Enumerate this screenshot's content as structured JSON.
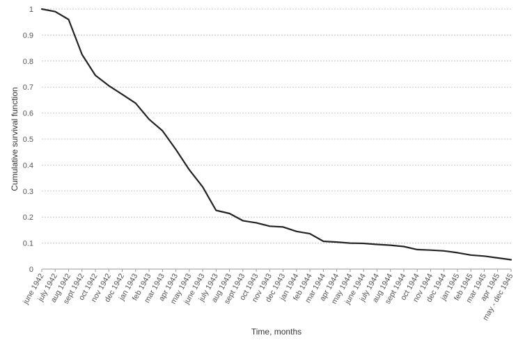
{
  "chart_data": {
    "type": "line",
    "title": "",
    "xlabel": "Time, months",
    "ylabel": "Cumulative survival function",
    "ylim": [
      0,
      1
    ],
    "yticks": [
      "0",
      "0.1",
      "0.2",
      "0.3",
      "0.4",
      "0.5",
      "0.6",
      "0.7",
      "0.8",
      "0.9",
      "1"
    ],
    "grid": "horizontal dotted",
    "legend": "none",
    "line_color": "#222222",
    "categories": [
      "june 1942",
      "july 1942",
      "aug 1942",
      "sept 1942",
      "oct 1942",
      "nov 1942",
      "dec 1942",
      "jan 1943",
      "feb 1943",
      "mar 1943",
      "apr 1943",
      "may 1943",
      "june 1943",
      "july 1943",
      "aug 1943",
      "sept 1943",
      "oct 1943",
      "nov 1943",
      "dec 1943",
      "jan 1944",
      "feb 1944",
      "mar 1944",
      "apr 1944",
      "may 1944",
      "june 1944",
      "july 1944",
      "aug 1944",
      "sept 1944",
      "oct 1944",
      "nov 1944",
      "dec 1944",
      "jan 1945",
      "feb 1945",
      "mar 1945",
      "apr 1945",
      "may - dec 1945"
    ],
    "values": [
      1.0,
      0.99,
      0.96,
      0.825,
      0.745,
      0.705,
      0.672,
      0.638,
      0.576,
      0.532,
      0.46,
      0.382,
      0.316,
      0.226,
      0.214,
      0.186,
      0.178,
      0.165,
      0.162,
      0.145,
      0.136,
      0.107,
      0.104,
      0.1,
      0.099,
      0.095,
      0.092,
      0.087,
      0.075,
      0.073,
      0.07,
      0.063,
      0.054,
      0.05,
      0.043,
      0.036
    ]
  }
}
